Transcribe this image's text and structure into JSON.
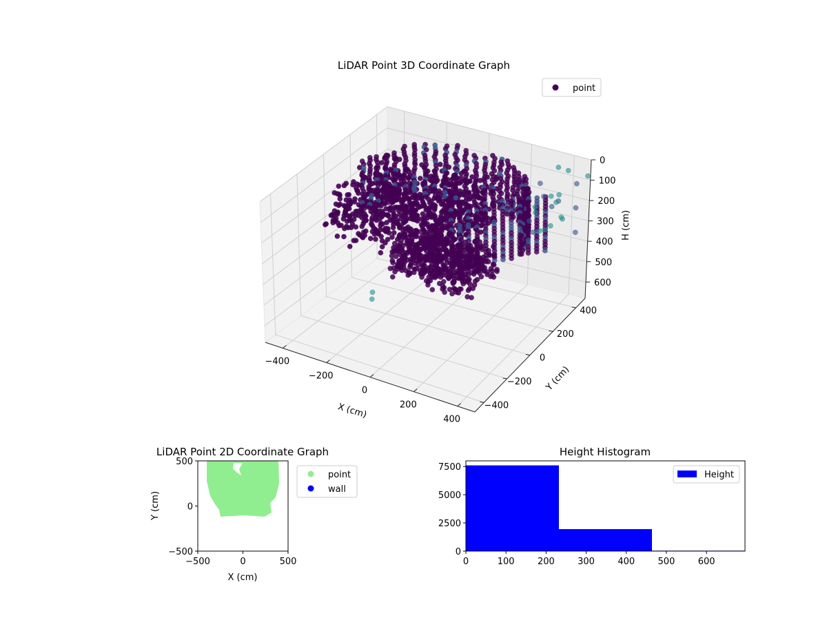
{
  "chart_data": [
    {
      "type": "scatter3d",
      "title": "LiDAR Point 3D Coordinate Graph",
      "xlabel": "X (cm)",
      "ylabel": "Y (cm)",
      "zlabel": "H (cm)",
      "xticks": [
        "−400",
        "−200",
        "0",
        "200",
        "400"
      ],
      "yticks": [
        "400",
        "200",
        "0",
        "−200",
        "−400"
      ],
      "zticks": [
        "0",
        "100",
        "200",
        "300",
        "400",
        "500",
        "600"
      ],
      "xlim": [
        -480,
        480
      ],
      "ylim": [
        -480,
        480
      ],
      "zlim": [
        0,
        680
      ],
      "zaxis_inverted": true,
      "grid": true,
      "legend": {
        "placement": "upper-right",
        "entries": [
          {
            "label": "point",
            "color": "#440154"
          }
        ]
      },
      "colors": {
        "main": "#440154",
        "mid": "#3b528b",
        "outlier": "#21918c"
      }
    },
    {
      "type": "scatter",
      "title": "LiDAR Point 2D Coordinate Graph",
      "xlabel": "X (cm)",
      "ylabel": "Y (cm)",
      "xticks": [
        "−500",
        "0",
        "500"
      ],
      "yticks": [
        "500",
        "0",
        "−500"
      ],
      "xlim": [
        -500,
        500
      ],
      "ylim": [
        -500,
        500
      ],
      "legend": {
        "placement": "outside-right",
        "entries": [
          {
            "label": "point",
            "color": "#90ee90"
          },
          {
            "label": "wall",
            "color": "#0000ff"
          }
        ]
      }
    },
    {
      "type": "bar",
      "title": "Height Histogram",
      "bins": [
        [
          0,
          232
        ],
        [
          232,
          464
        ],
        [
          464,
          696
        ]
      ],
      "values": [
        7600,
        1950,
        40
      ],
      "xlim": [
        0,
        696
      ],
      "ylim": [
        0,
        8000
      ],
      "xticks": [
        "0",
        "100",
        "200",
        "300",
        "400",
        "500",
        "600"
      ],
      "yticks": [
        "0",
        "2500",
        "5000",
        "7500"
      ],
      "color": "#0000ff",
      "legend": {
        "placement": "upper-right",
        "entries": [
          {
            "label": "Height",
            "color": "#0000ff"
          }
        ]
      }
    }
  ]
}
